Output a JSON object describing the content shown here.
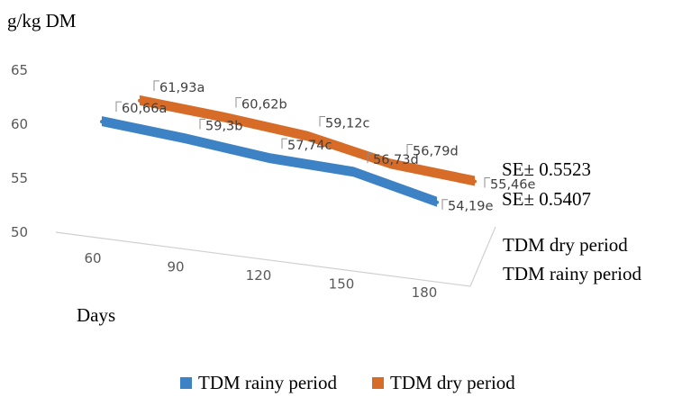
{
  "chart_data": {
    "type": "line",
    "ylabel": "g/kg DM",
    "xlabel": "Days",
    "categories": [
      "60",
      "90",
      "120",
      "150",
      "180"
    ],
    "y_ticks": [
      50,
      55,
      60,
      65
    ],
    "ylim": [
      50,
      65
    ],
    "series": [
      {
        "name": "TDM rainy period",
        "color": "#3d82c4",
        "values": [
          60.66,
          59.3,
          57.74,
          56.73,
          54.19
        ],
        "labels": [
          "60,66a",
          "59,3b",
          "57,74c",
          "56,73d",
          "54,19e"
        ]
      },
      {
        "name": "TDM dry period",
        "color": "#d66c28",
        "values": [
          61.93,
          60.62,
          59.12,
          56.79,
          55.46
        ],
        "labels": [
          "61,93a",
          "60,62b",
          "59,12c",
          "56,79d",
          "55,46e"
        ]
      }
    ],
    "annotations": [
      "SE± 0.5523",
      "SE± 0.5407"
    ],
    "depth_axis_labels": [
      "TDM dry period",
      "TDM rainy period"
    ],
    "legend": {
      "placement": "bottom",
      "items": [
        "TDM rainy period",
        "TDM dry period"
      ]
    }
  }
}
